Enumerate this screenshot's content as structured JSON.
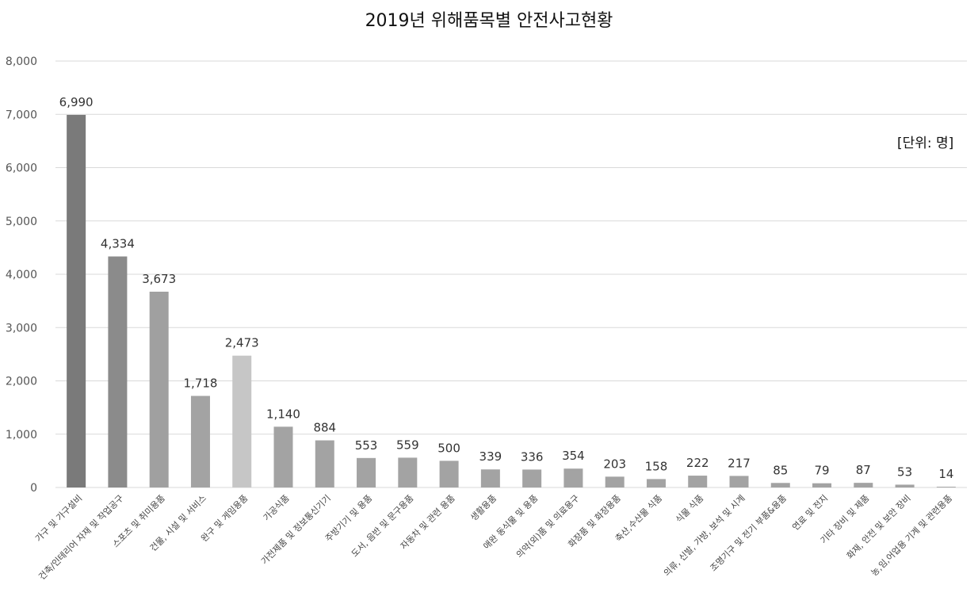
{
  "chart_data": {
    "type": "bar",
    "title": "2019년 위해품목별 안전사고현황",
    "unit_label": "[단위: 명]",
    "xlabel": "",
    "ylabel": "",
    "ylim": [
      0,
      8000
    ],
    "y_ticks": [
      "0",
      "1,000",
      "2,000",
      "3,000",
      "4,000",
      "5,000",
      "6,000",
      "7,000",
      "8,000"
    ],
    "grid": true,
    "legend": "none",
    "categories": [
      "가구 및 가구설비",
      "건축/인테리어 자재 및 작업공구",
      "스포츠 및 취미용품",
      "건물, 시설 및 서비스",
      "완구 및 게임용품",
      "가공식품",
      "가전제품 및 정보통신기기",
      "주방기기 및 용품",
      "도서, 음반 및 문구용품",
      "자동차 및 관련 용품",
      "생활용품",
      "애완 동식물 및 용품",
      "의약(외)품 및 의료용구",
      "화장품 및 화장용품",
      "축산,수산물 식품",
      "식물 식품",
      "의류, 신발, 가방, 보석 및 시계",
      "조명기구 및 전기 부품&용품",
      "연료 및 전지",
      "기타 장비 및 제품",
      "화재, 안전 및 보안 장비",
      "농,임,어업용 기계 및 관련용품"
    ],
    "values": [
      6990,
      4334,
      3673,
      1718,
      2473,
      1140,
      884,
      553,
      559,
      500,
      339,
      336,
      354,
      203,
      158,
      222,
      217,
      85,
      79,
      87,
      53,
      14
    ],
    "value_labels": [
      "6,990",
      "4,334",
      "3,673",
      "1,718",
      "2,473",
      "1,140",
      "884",
      "553",
      "559",
      "500",
      "339",
      "336",
      "354",
      "203",
      "158",
      "222",
      "217",
      "85",
      "79",
      "87",
      "53",
      "14"
    ],
    "bar_colors": [
      "#7a7a7a",
      "#8b8b8b",
      "#a0a0a0",
      "#a3a3a3",
      "#c6c6c6",
      "#a3a3a3",
      "#a3a3a3",
      "#a3a3a3",
      "#a3a3a3",
      "#a3a3a3",
      "#a3a3a3",
      "#a3a3a3",
      "#a3a3a3",
      "#a3a3a3",
      "#a3a3a3",
      "#a3a3a3",
      "#a3a3a3",
      "#a3a3a3",
      "#a3a3a3",
      "#a3a3a3",
      "#a3a3a3",
      "#a3a3a3"
    ],
    "grid_color": "#d9d9d9"
  }
}
